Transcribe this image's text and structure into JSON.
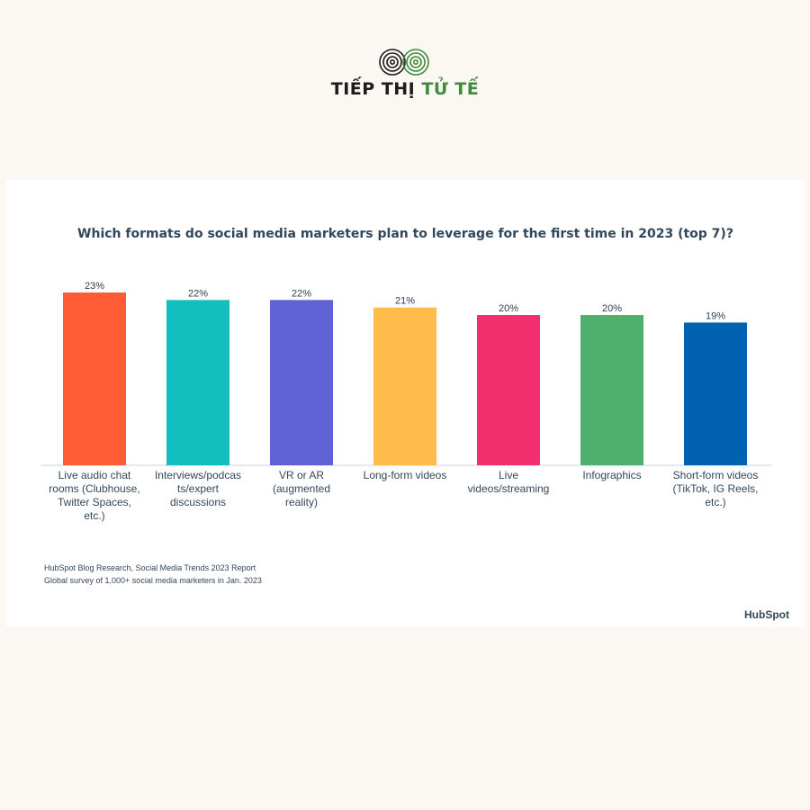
{
  "brand": {
    "name_part1": "TIẾP THỊ",
    "name_part2": "TỬ TẾ",
    "colors": {
      "dark": "#1c1c1c",
      "green": "#3f8a3b"
    }
  },
  "chart_data": {
    "type": "bar",
    "title": "Which formats do social media marketers plan to leverage for the first time in 2023 (top 7)?",
    "categories": [
      [
        "Live audio chat",
        "rooms (Clubhouse,",
        "Twitter Spaces,",
        "etc.)"
      ],
      [
        "Interviews/podcas",
        "ts/expert",
        "discussions"
      ],
      [
        "VR or AR",
        "(augmented",
        "reality)"
      ],
      [
        "Long-form videos"
      ],
      [
        "Live",
        "videos/streaming"
      ],
      [
        "Infographics"
      ],
      [
        "Short-form videos",
        "(TikTok, IG Reels,",
        "etc.)"
      ]
    ],
    "values": [
      23,
      22,
      22,
      21,
      20,
      20,
      19
    ],
    "value_labels": [
      "23%",
      "22%",
      "22%",
      "21%",
      "20%",
      "20%",
      "19%"
    ],
    "colors": [
      "#ff5c35",
      "#12bfbe",
      "#5e62d5",
      "#ffbc4b",
      "#f2306f",
      "#4fb06d",
      "#0062b0"
    ],
    "ylim": [
      0,
      25
    ],
    "xlabel": "",
    "ylabel": "",
    "grid": false,
    "legend": "none"
  },
  "source": {
    "line1": "HubSpot Blog Research, Social Media Trends 2023 Report",
    "line2": "Global survey of 1,000+ social media marketers in Jan. 2023"
  },
  "footer_logo": "HubSpot"
}
